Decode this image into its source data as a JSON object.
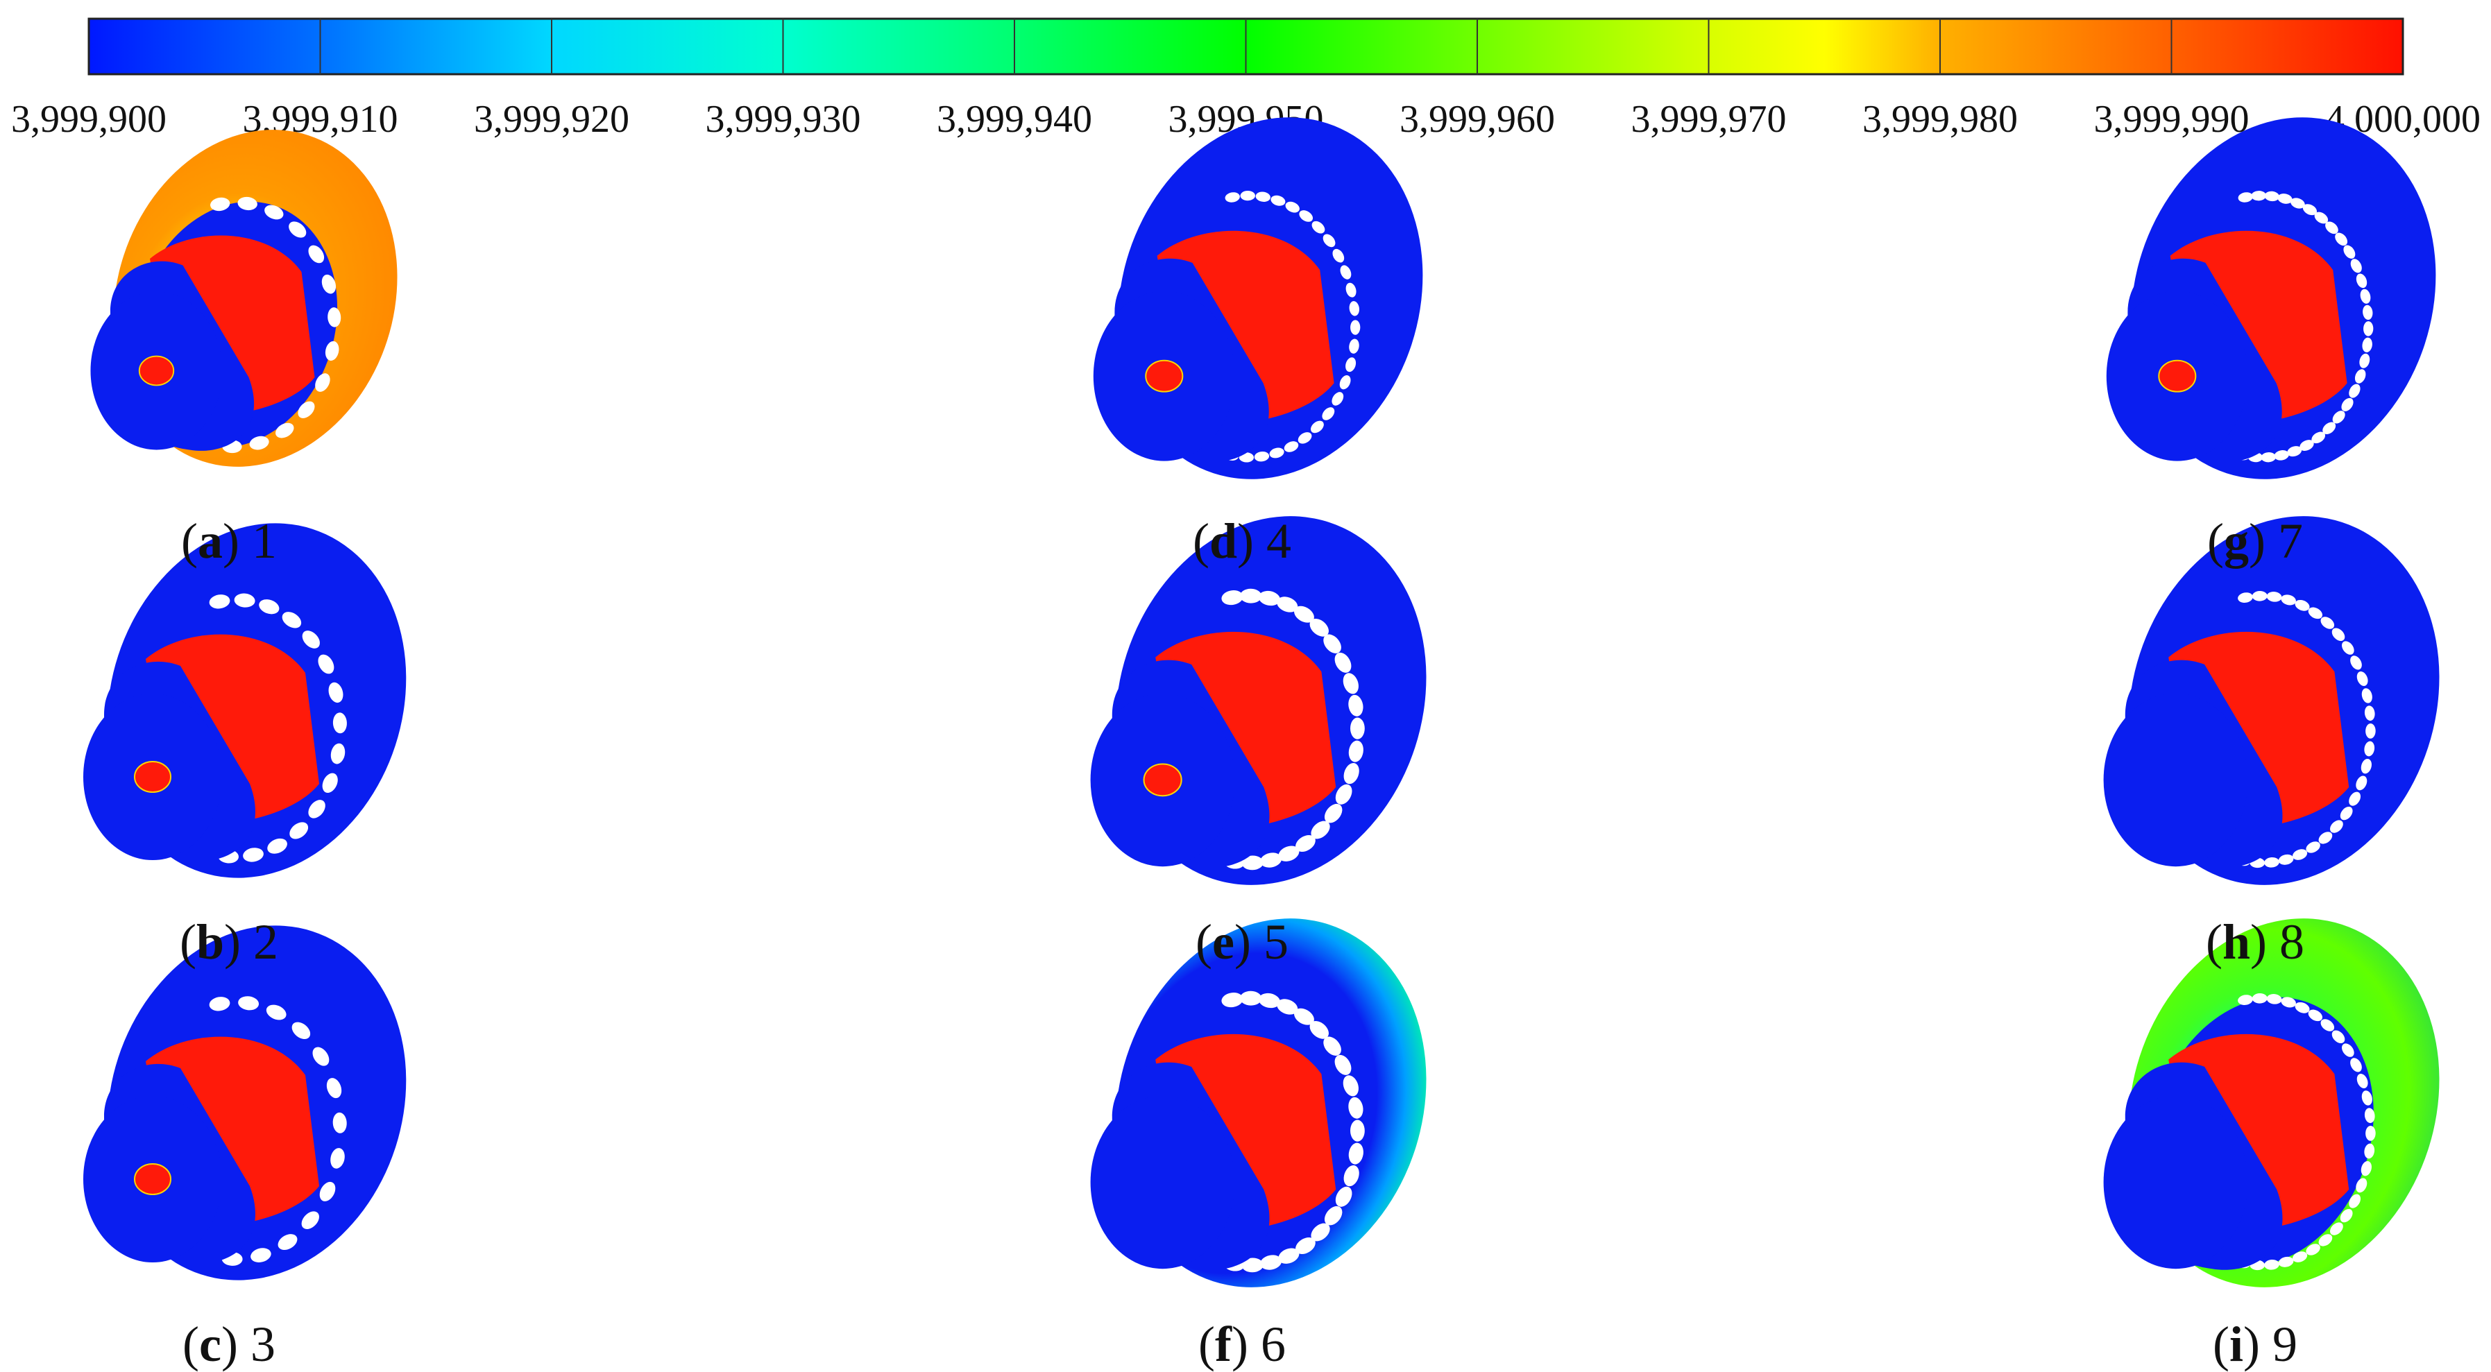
{
  "colorbar": {
    "ticks": [
      "3,999,900",
      "3,999,910",
      "3,999,920",
      "3,999,930",
      "3,999,940",
      "3,999,950",
      "3,999,960",
      "3,999,970",
      "3,999,980",
      "3,999,990",
      "4,000,000"
    ],
    "colormap": [
      "#0019ff",
      "#0080ff",
      "#00ffff",
      "#00ff80",
      "#00ff00",
      "#80ff00",
      "#ffff00",
      "#ffa000",
      "#ff3000",
      "#ff0000"
    ]
  },
  "colors": {
    "low": "#0a1ef0",
    "high": "#ff1a0a",
    "holes": "#ffffff",
    "outline": "#1a1a1a"
  },
  "panels": [
    {
      "letter": "a",
      "number": "1",
      "rim": "orange",
      "hole_count": 14
    },
    {
      "letter": "d",
      "number": "4",
      "rim": "blue",
      "hole_count": 26
    },
    {
      "letter": "g",
      "number": "7",
      "rim": "blue",
      "hole_count": 30
    },
    {
      "letter": "b",
      "number": "2",
      "rim": "blue",
      "hole_count": 16
    },
    {
      "letter": "e",
      "number": "5",
      "rim": "blue",
      "hole_count": 22
    },
    {
      "letter": "h",
      "number": "8",
      "rim": "blue",
      "hole_count": 28
    },
    {
      "letter": "c",
      "number": "3",
      "rim": "blue",
      "hole_count": 14
    },
    {
      "letter": "f",
      "number": "6",
      "rim": "blue-green",
      "hole_count": 22
    },
    {
      "letter": "i",
      "number": "9",
      "rim": "green",
      "hole_count": 28
    }
  ]
}
